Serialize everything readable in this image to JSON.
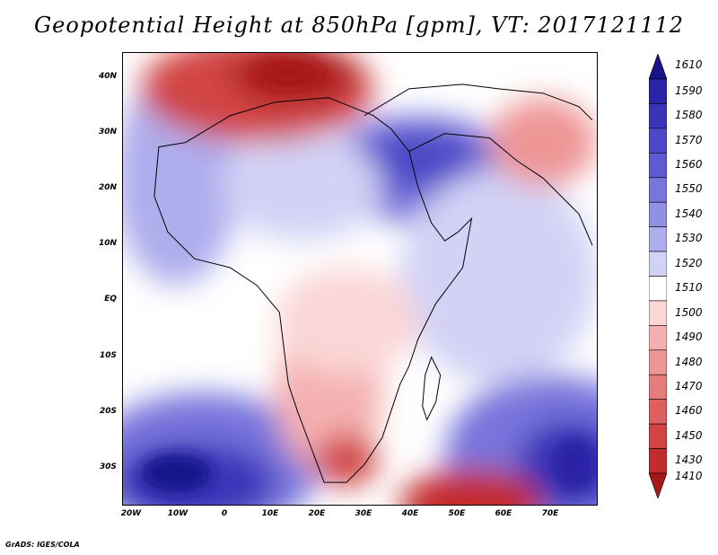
{
  "title": "Geopotential Height at 850hPa [gpm], VT: 2017121112",
  "credit": "GrADS: IGES/COLA",
  "map": {
    "lat_labels": [
      "40N",
      "30N",
      "20N",
      "10N",
      "EQ",
      "10S",
      "20S",
      "30S"
    ],
    "lon_labels": [
      "20W",
      "10W",
      "0",
      "10E",
      "20E",
      "30E",
      "40E",
      "50E",
      "60E",
      "70E"
    ]
  },
  "colorbar": {
    "labels": [
      "1610",
      "1590",
      "1580",
      "1570",
      "1560",
      "1550",
      "1540",
      "1530",
      "1520",
      "1510",
      "1500",
      "1490",
      "1480",
      "1470",
      "1460",
      "1450",
      "1430",
      "1410"
    ],
    "colors": [
      "#19148c",
      "#2a24a6",
      "#3a34b8",
      "#4d48c8",
      "#5f5ad2",
      "#7874dc",
      "#9290e4",
      "#aeaded",
      "#d2d2f6",
      "#ffffff",
      "#fbd6d6",
      "#f4b0b0",
      "#ee9696",
      "#e67c7c",
      "#de5f5f",
      "#d24444",
      "#c32c2c",
      "#a81818"
    ]
  }
}
